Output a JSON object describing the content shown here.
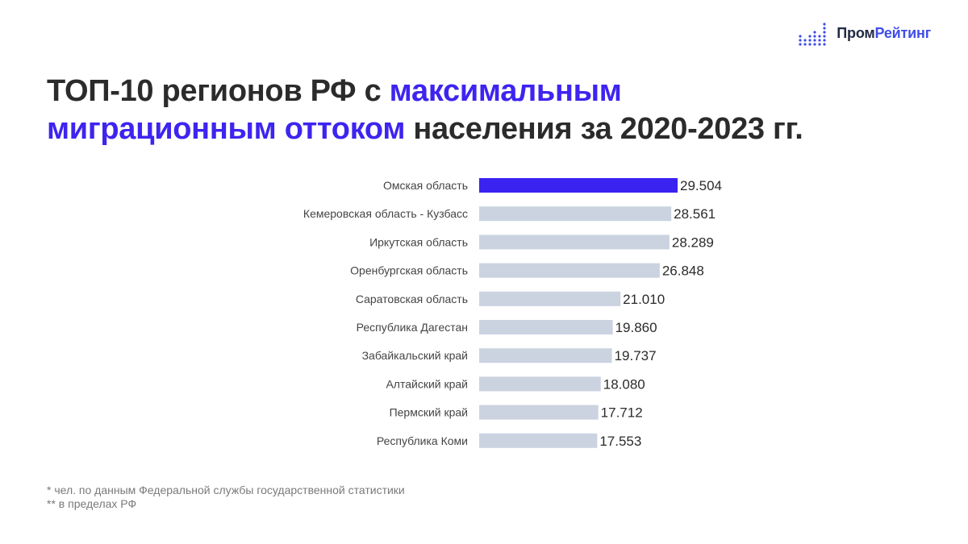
{
  "logo": {
    "part1": "Пром",
    "part2": "Рейтинг",
    "icon": "dot-bars-logo-icon",
    "colors": {
      "dark": "#222a45",
      "accent": "#3f4de8"
    }
  },
  "title": {
    "part1": "ТОП-10 регионов РФ с ",
    "accent1": "максимальным",
    "accent2": "миграционным оттоком",
    "part2": " населения за 2020-2023 гг."
  },
  "chart_data": {
    "type": "bar",
    "orientation": "horizontal",
    "categories": [
      "Омская область",
      "Кемеровская область - Кузбасс",
      "Иркутская область",
      "Оренбургская область",
      "Саратовская область",
      "Республика Дагестан",
      "Забайкальский край",
      "Алтайский край",
      "Пермский край",
      "Республика Коми"
    ],
    "values": [
      29504,
      28561,
      28289,
      26848,
      21010,
      19860,
      19737,
      18080,
      17712,
      17553
    ],
    "value_labels": [
      "29.504",
      "28.561",
      "28.289",
      "26.848",
      "21.010",
      "19.860",
      "19.737",
      "18.080",
      "17.712",
      "17.553"
    ],
    "highlight_index": 0,
    "colors": {
      "highlight": "#3a22f0",
      "default": "#cbd2e0",
      "label": "#2b2b2b",
      "category": "#444444"
    },
    "grid": false,
    "xlim": [
      0,
      29504
    ]
  },
  "footnotes": [
    "* чел. по данным Федеральной службы государственной статистики",
    "** в пределах РФ"
  ]
}
